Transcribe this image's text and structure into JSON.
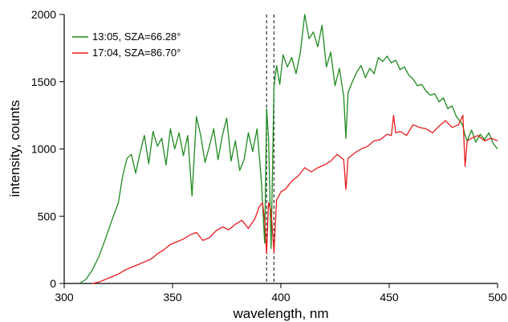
{
  "chart_data": {
    "type": "line",
    "xlabel": "wavelength, nm",
    "ylabel": "intensity, counts",
    "xlim": [
      300,
      500
    ],
    "ylim": [
      0,
      2000
    ],
    "xticks": [
      "300",
      "350",
      "400",
      "450",
      "500"
    ],
    "yticks": [
      "0",
      "500",
      "1000",
      "1500",
      "2000"
    ],
    "grid": false,
    "legend_position": "top-left",
    "reference_lines": [
      {
        "axis": "x",
        "value": 393.4,
        "style": "dashed",
        "color": "#222222"
      },
      {
        "axis": "x",
        "value": 396.8,
        "style": "dashed",
        "color": "#222222"
      }
    ],
    "series": [
      {
        "name": "13:05, SZA=66.28°",
        "color": "#1f8a1f",
        "x": [
          307,
          310,
          313,
          316,
          319,
          322,
          325,
          327,
          329,
          331,
          333,
          335,
          337,
          339,
          341,
          343,
          345,
          347,
          349,
          351,
          353,
          355,
          357,
          359,
          361,
          363,
          365,
          367,
          369,
          371,
          373,
          375,
          377,
          379,
          381,
          383,
          385,
          387,
          389,
          391,
          392.5,
          393.4,
          394.3,
          395.5,
          396.8,
          398,
          399.5,
          401,
          403,
          405,
          407,
          409,
          411,
          413,
          415,
          417,
          419,
          421,
          423,
          425,
          427,
          429,
          430,
          431,
          433,
          435,
          437,
          439,
          441,
          443,
          445,
          447,
          449,
          451,
          453,
          455,
          457,
          459,
          461,
          463,
          465,
          467,
          469,
          471,
          473,
          475,
          477,
          479,
          481,
          483,
          484,
          485,
          486,
          488,
          490,
          492,
          494,
          496,
          498,
          500
        ],
        "y": [
          0,
          30,
          100,
          200,
          330,
          470,
          600,
          800,
          930,
          960,
          820,
          970,
          1100,
          890,
          1130,
          1020,
          1080,
          880,
          1150,
          1000,
          1120,
          950,
          1100,
          650,
          1240,
          1100,
          900,
          1020,
          1150,
          920,
          1100,
          1230,
          910,
          1060,
          840,
          920,
          1120,
          980,
          1150,
          760,
          300,
          1300,
          1080,
          260,
          1460,
          1620,
          1480,
          1700,
          1610,
          1680,
          1560,
          1720,
          2000,
          1820,
          1870,
          1760,
          1920,
          1610,
          1720,
          1470,
          1600,
          1390,
          1080,
          1420,
          1500,
          1570,
          1620,
          1530,
          1600,
          1560,
          1680,
          1650,
          1690,
          1640,
          1660,
          1590,
          1610,
          1550,
          1520,
          1470,
          1480,
          1430,
          1400,
          1410,
          1350,
          1380,
          1300,
          1320,
          1240,
          1200,
          1170,
          1100,
          1060,
          1140,
          1050,
          1110,
          1070,
          1120,
          1040,
          1000
        ]
      },
      {
        "name": "17:04, SZA=86.70°",
        "color": "#e81b1b",
        "x": [
          313,
          316,
          319,
          322,
          325,
          328,
          331,
          334,
          337,
          340,
          343,
          346,
          349,
          352,
          355,
          358,
          361,
          364,
          367,
          370,
          373,
          376,
          379,
          382,
          385,
          388,
          390,
          391.5,
          392.5,
          393.4,
          394.3,
          395.5,
          396.8,
          398,
          400,
          402,
          405,
          408,
          411,
          414,
          417,
          420,
          423,
          426,
          429,
          430,
          431,
          434,
          437,
          440,
          443,
          446,
          449,
          451,
          452,
          453,
          455,
          458,
          461,
          464,
          467,
          470,
          473,
          476,
          479,
          482,
          484,
          485,
          486,
          488,
          491,
          494,
          497,
          500
        ],
        "y": [
          0,
          10,
          30,
          50,
          70,
          100,
          120,
          140,
          160,
          180,
          220,
          250,
          290,
          310,
          330,
          360,
          380,
          320,
          340,
          390,
          420,
          400,
          440,
          470,
          410,
          480,
          570,
          600,
          470,
          220,
          600,
          540,
          230,
          620,
          680,
          700,
          760,
          800,
          860,
          830,
          860,
          880,
          910,
          960,
          920,
          700,
          930,
          970,
          1000,
          1020,
          1060,
          1070,
          1110,
          1100,
          1250,
          1120,
          1130,
          1100,
          1180,
          1160,
          1150,
          1120,
          1170,
          1210,
          1160,
          1180,
          1250,
          870,
          1060,
          1080,
          1100,
          1060,
          1080,
          1060
        ]
      }
    ]
  }
}
